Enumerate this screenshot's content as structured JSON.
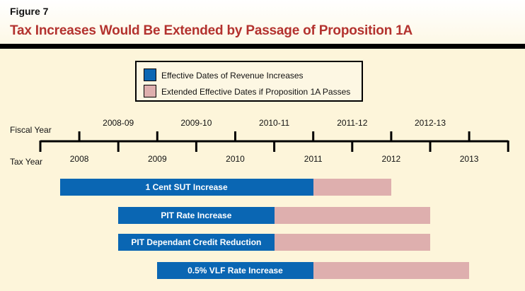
{
  "figure_label": "Figure 7",
  "title": "Tax Increases Would Be Extended by Passage of Proposition 1A",
  "legend": [
    {
      "label": "Effective Dates of Revenue Increases",
      "color": "#0a66b3"
    },
    {
      "label": "Extended Effective Dates if Proposition 1A Passes",
      "color": "#deafae"
    }
  ],
  "timeline": {
    "fiscal_year_label": "Fiscal Year",
    "tax_year_label": "Tax Year",
    "fiscal_years": [
      "2008-09",
      "2009-10",
      "2010-11",
      "2011-12",
      "2012-13"
    ],
    "tax_years": [
      "2008",
      "2009",
      "2010",
      "2011",
      "2012",
      "2013"
    ]
  },
  "chart_data": {
    "type": "timeline",
    "colors": {
      "effective": "#0a66b3",
      "extended": "#deafae"
    },
    "bars": [
      {
        "label": "1 Cent SUT Increase",
        "start": 2008.25,
        "end": 2011.5,
        "extended_end": 2012.5
      },
      {
        "label": "PIT Rate Increase",
        "start": 2009.0,
        "end": 2011.0,
        "extended_end": 2013.0
      },
      {
        "label": "PIT Dependant Credit Reduction",
        "start": 2009.0,
        "end": 2011.0,
        "extended_end": 2013.0
      },
      {
        "label": "0.5% VLF Rate Increase",
        "start": 2009.5,
        "end": 2011.5,
        "extended_end": 2013.5
      }
    ]
  }
}
